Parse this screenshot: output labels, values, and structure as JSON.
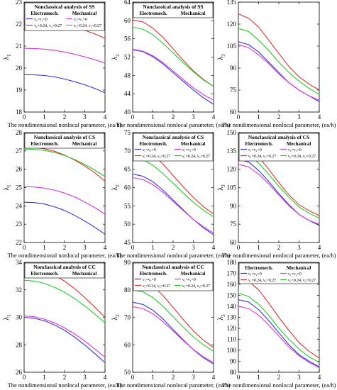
{
  "xlabel": "The nondimensional nonlocal parameter, (ea/h)",
  "ylabel_base": "λ",
  "legend": {
    "group_left": "Electromech.",
    "group_right": "Mechanical",
    "entry_a": "ν₁=ν₂=0",
    "entry_b": "ν₁=0.24, ν₂=0.27"
  },
  "colors": {
    "electro_zero": "#3333dd",
    "electro_poisson": "#e03030",
    "mech_zero": "#dd33dd",
    "mech_poisson": "#22cc22"
  },
  "chart_data": [
    {
      "type": "line",
      "title": "Nonclassical analysis of SS",
      "legend": "full",
      "ylabel": "λ",
      "mode": "1",
      "x": [
        0,
        0.5,
        1,
        1.5,
        2,
        2.5,
        3,
        3.5,
        4
      ],
      "xticks": [
        0,
        1,
        2,
        3,
        4
      ],
      "ylim": [
        18,
        23
      ],
      "yticks": [
        18,
        19,
        20,
        21,
        22,
        23
      ],
      "series": [
        {
          "color": "electro_zero",
          "values": [
            19.7,
            19.69,
            19.66,
            19.6,
            19.5,
            19.38,
            19.24,
            19.07,
            18.88
          ]
        },
        {
          "color": "electro_poisson",
          "values": [
            22.2,
            22.19,
            22.15,
            22.08,
            21.98,
            21.86,
            21.72,
            21.55,
            21.35
          ]
        },
        {
          "color": "mech_zero",
          "values": [
            20.9,
            20.89,
            20.86,
            20.81,
            20.73,
            20.63,
            20.51,
            20.38,
            20.22
          ]
        },
        {
          "color": "mech_poisson",
          "values": [
            22.7,
            22.69,
            22.66,
            22.61,
            22.54,
            22.45,
            22.35,
            22.22,
            22.07
          ]
        }
      ]
    },
    {
      "type": "line",
      "title": "Nonclassical analysis of SS",
      "legend": "groups",
      "ylabel": "λ",
      "mode": "2",
      "x": [
        0,
        0.5,
        1,
        1.5,
        2,
        2.5,
        3,
        3.5,
        4
      ],
      "xticks": [
        0,
        1,
        2,
        3,
        4
      ],
      "ylim": [
        40,
        64
      ],
      "yticks": [
        40,
        44,
        48,
        52,
        56,
        60,
        64
      ],
      "series": [
        {
          "color": "electro_zero",
          "values": [
            53.6,
            53.2,
            52.1,
            50.5,
            48.6,
            46.7,
            44.8,
            43.1,
            41.7
          ]
        },
        {
          "color": "electro_poisson",
          "values": [
            60.1,
            59.7,
            58.3,
            56.3,
            53.8,
            51.3,
            49.0,
            47.1,
            45.6
          ]
        },
        {
          "color": "mech_zero",
          "values": [
            53.7,
            53.3,
            52.3,
            50.8,
            49.0,
            47.1,
            45.3,
            43.8,
            42.6
          ]
        },
        {
          "color": "mech_poisson",
          "values": [
            58.5,
            58.1,
            56.9,
            55.0,
            52.9,
            50.8,
            48.8,
            47.0,
            45.6
          ]
        }
      ]
    },
    {
      "type": "line",
      "title": "",
      "legend": "none",
      "ylabel": "λ",
      "mode": "3",
      "x": [
        0,
        0.5,
        1,
        1.5,
        2,
        2.5,
        3,
        3.5,
        4
      ],
      "xticks": [
        0,
        1,
        2,
        3,
        4
      ],
      "ylim": [
        60,
        135
      ],
      "yticks": [
        60,
        75,
        90,
        105,
        120,
        135
      ],
      "series": [
        {
          "color": "electro_zero",
          "values": [
            108,
            106,
            101,
            94,
            87,
            80,
            75,
            71,
            67
          ]
        },
        {
          "color": "electro_poisson",
          "values": [
            127,
            124,
            118,
            109,
            100,
            91,
            84,
            79,
            75
          ]
        },
        {
          "color": "mech_zero",
          "values": [
            106,
            104,
            99,
            93,
            86,
            80,
            75,
            71,
            68
          ]
        },
        {
          "color": "mech_poisson",
          "values": [
            117,
            115,
            109,
            102,
            94,
            87,
            81,
            76,
            72
          ]
        }
      ]
    },
    {
      "type": "line",
      "title": "Nonclassical analysis of CS",
      "legend": "groups",
      "ylabel": "λ",
      "mode": "1",
      "x": [
        0,
        0.5,
        1,
        1.5,
        2,
        2.5,
        3,
        3.5,
        4
      ],
      "xticks": [
        0,
        1,
        2,
        3,
        4
      ],
      "ylim": [
        22,
        28
      ],
      "yticks": [
        22,
        23,
        24,
        25,
        26,
        27,
        28
      ],
      "series": [
        {
          "color": "electro_zero",
          "values": [
            24.2,
            24.18,
            24.1,
            23.95,
            23.75,
            23.48,
            23.17,
            22.83,
            22.45
          ]
        },
        {
          "color": "electro_poisson",
          "values": [
            27.2,
            27.19,
            27.12,
            26.98,
            26.77,
            26.5,
            26.18,
            25.8,
            25.35
          ]
        },
        {
          "color": "mech_zero",
          "values": [
            25.05,
            25.03,
            24.97,
            24.86,
            24.7,
            24.48,
            24.21,
            23.9,
            23.55
          ]
        },
        {
          "color": "mech_poisson",
          "values": [
            27.1,
            27.09,
            27.03,
            26.92,
            26.75,
            26.53,
            26.26,
            25.95,
            25.6
          ]
        }
      ]
    },
    {
      "type": "line",
      "title": "Nonclassical analysis of CS",
      "legend": "full",
      "ylabel": "λ",
      "mode": "2",
      "x": [
        0,
        0.5,
        1,
        1.5,
        2,
        2.5,
        3,
        3.5,
        4
      ],
      "xticks": [
        0,
        1,
        2,
        3,
        4
      ],
      "ylim": [
        45,
        75
      ],
      "yticks": [
        45,
        50,
        55,
        60,
        65,
        70,
        75
      ],
      "series": [
        {
          "color": "electro_zero",
          "values": [
            63.7,
            63.1,
            61.6,
            59.3,
            56.6,
            53.9,
            51.3,
            49.0,
            47.1
          ]
        },
        {
          "color": "electro_poisson",
          "values": [
            71.3,
            70.7,
            69.0,
            66.4,
            63.3,
            60.2,
            57.3,
            54.8,
            52.8
          ]
        },
        {
          "color": "mech_zero",
          "values": [
            62.7,
            62.2,
            60.8,
            58.7,
            56.2,
            53.7,
            51.3,
            49.3,
            47.6
          ]
        },
        {
          "color": "mech_poisson",
          "values": [
            68.1,
            67.6,
            66.1,
            63.8,
            61.2,
            58.5,
            56.0,
            53.8,
            52.0
          ]
        }
      ]
    },
    {
      "type": "line",
      "title": "Nonclassical analysis of CS",
      "legend": "full",
      "ylabel": "λ",
      "mode": "3",
      "x": [
        0,
        0.5,
        1,
        1.5,
        2,
        2.5,
        3,
        3.5,
        4
      ],
      "xticks": [
        0,
        1,
        2,
        3,
        4
      ],
      "ylim": [
        60,
        150
      ],
      "yticks": [
        60,
        75,
        90,
        105,
        120,
        135,
        150
      ],
      "series": [
        {
          "color": "electro_zero",
          "values": [
            128,
            126,
            119,
            110,
            100,
            91,
            83,
            78,
            74
          ]
        },
        {
          "color": "electro_poisson",
          "values": [
            140,
            137,
            130,
            120,
            109,
            99,
            91,
            86,
            82
          ]
        },
        {
          "color": "mech_zero",
          "values": [
            124,
            122,
            116,
            108,
            99,
            90,
            83,
            78,
            75
          ]
        },
        {
          "color": "mech_poisson",
          "values": [
            134,
            132,
            125,
            116,
            106,
            97,
            89,
            84,
            80
          ]
        }
      ]
    },
    {
      "type": "line",
      "title": "Nonclassical analysis of CC",
      "legend": "groups",
      "ylabel": "λ",
      "mode": "1",
      "x": [
        0,
        0.5,
        1,
        1.5,
        2,
        2.5,
        3,
        3.5,
        4
      ],
      "xticks": [
        0,
        1,
        2,
        3,
        4
      ],
      "ylim": [
        26,
        34
      ],
      "yticks": [
        26,
        28,
        30,
        32,
        34
      ],
      "series": [
        {
          "color": "electro_zero",
          "values": [
            30.0,
            29.93,
            29.75,
            29.45,
            29.05,
            28.55,
            27.98,
            27.35,
            26.7
          ]
        },
        {
          "color": "electro_poisson",
          "values": [
            33.7,
            33.63,
            33.42,
            33.08,
            32.63,
            32.08,
            31.44,
            30.74,
            30.0
          ]
        },
        {
          "color": "mech_zero",
          "values": [
            30.1,
            30.04,
            29.87,
            29.6,
            29.23,
            28.78,
            28.27,
            27.69,
            27.1
          ]
        },
        {
          "color": "mech_poisson",
          "values": [
            32.7,
            32.64,
            32.47,
            32.19,
            31.82,
            31.36,
            30.83,
            30.23,
            29.6
          ]
        }
      ]
    },
    {
      "type": "line",
      "title": "Nonclassical analysis of CC",
      "legend": "full",
      "ylabel": "λ",
      "mode": "2",
      "x": [
        0,
        0.5,
        1,
        1.5,
        2,
        2.5,
        3,
        3.5,
        4
      ],
      "xticks": [
        0,
        1,
        2,
        3,
        4
      ],
      "ylim": [
        50,
        90
      ],
      "yticks": [
        50,
        60,
        70,
        80,
        90
      ],
      "series": [
        {
          "color": "electro_zero",
          "values": [
            75.5,
            74.7,
            72.6,
            69.4,
            65.6,
            61.8,
            58.2,
            55.3,
            53.0
          ]
        },
        {
          "color": "electro_poisson",
          "values": [
            84.6,
            83.8,
            81.5,
            77.9,
            73.6,
            69.2,
            65.1,
            61.7,
            59.0
          ]
        },
        {
          "color": "mech_zero",
          "values": [
            73.9,
            73.2,
            71.3,
            68.4,
            65.0,
            61.5,
            58.3,
            55.6,
            53.5
          ]
        },
        {
          "color": "mech_poisson",
          "values": [
            80.0,
            79.3,
            77.2,
            74.0,
            70.2,
            66.4,
            62.9,
            60.0,
            57.6
          ]
        }
      ]
    },
    {
      "type": "line",
      "title": "",
      "legend": "full",
      "ylabel": "λ",
      "mode": "3",
      "x": [
        0,
        0.5,
        1,
        1.5,
        2,
        2.5,
        3,
        3.5,
        4
      ],
      "xticks": [
        0,
        1,
        2,
        3,
        4
      ],
      "ylim": [
        80,
        180
      ],
      "yticks": [
        80,
        90,
        100,
        110,
        120,
        130,
        140,
        150,
        160,
        170,
        180
      ],
      "series": [
        {
          "color": "electro_zero",
          "values": [
            146,
            144,
            137,
            127,
            116,
            105,
            96,
            90,
            85
          ]
        },
        {
          "color": "electro_poisson",
          "values": [
            166,
            163,
            155,
            143,
            130,
            118,
            107,
            99,
            93
          ]
        },
        {
          "color": "mech_zero",
          "values": [
            140,
            138,
            132,
            123,
            113,
            103,
            95,
            89,
            84
          ]
        },
        {
          "color": "mech_poisson",
          "values": [
            152,
            149,
            142,
            132,
            120,
            110,
            101,
            94,
            89
          ]
        }
      ]
    }
  ]
}
